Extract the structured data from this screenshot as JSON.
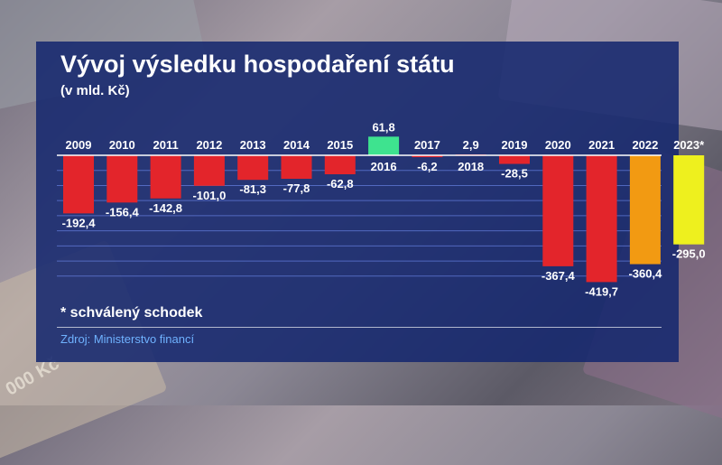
{
  "title": "Vývoj výsledku hospodaření státu",
  "subtitle": "(v mld. Kč)",
  "footnote": "* schválený schodek",
  "source": "Zdroj: Ministerstvo financí",
  "background_text": "000 Kč",
  "colors": {
    "panel": "#16286e",
    "deficit": "#e3252b",
    "surplus": "#3ee38f",
    "orange": "#f29a12",
    "yellow": "#eef01e",
    "text": "#ffffff",
    "source": "#6fb2ff"
  },
  "chart_data": {
    "type": "bar",
    "categories": [
      "2009",
      "2010",
      "2011",
      "2012",
      "2013",
      "2014",
      "2015",
      "2016",
      "2017",
      "2018",
      "2019",
      "2020",
      "2021",
      "2022",
      "2023*"
    ],
    "values": [
      -192.4,
      -156.4,
      -142.8,
      -101.0,
      -81.3,
      -77.8,
      -62.8,
      61.8,
      -6.2,
      2.9,
      -28.5,
      -367.4,
      -419.7,
      -360.4,
      -295.0
    ],
    "value_labels": [
      "-192,4",
      "-156,4",
      "-142,8",
      "-101,0",
      "-81,3",
      "-77,8",
      "-62,8",
      "61,8",
      "-6,2",
      "2,9",
      "-28,5",
      "-367,4",
      "-419,7",
      "-360,4",
      "-295,0"
    ],
    "bar_colors": [
      "#e3252b",
      "#e3252b",
      "#e3252b",
      "#e3252b",
      "#e3252b",
      "#e3252b",
      "#e3252b",
      "#3ee38f",
      "#e3252b",
      "#e3252b",
      "#e3252b",
      "#e3252b",
      "#e3252b",
      "#f29a12",
      "#eef01e"
    ],
    "ylim": [
      -420,
      62
    ],
    "grid": true,
    "xlabel": "",
    "ylabel": ""
  }
}
